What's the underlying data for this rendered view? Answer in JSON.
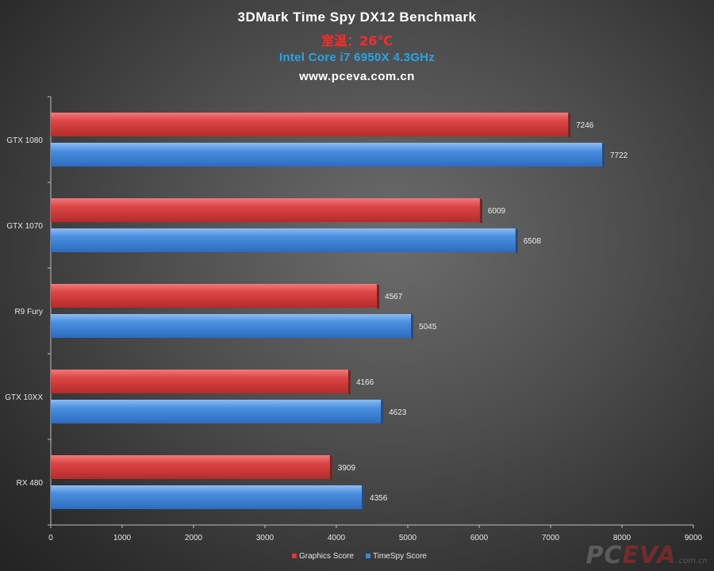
{
  "title": {
    "main": "3DMark Time Spy DX12 Benchmark",
    "temp": "室温：26℃",
    "cpu": "Intel Core i7 6950X 4.3GHz",
    "site": "www.pceva.com.cn"
  },
  "chart_data": {
    "type": "bar",
    "orientation": "horizontal",
    "categories": [
      "GTX 1080",
      "GTX 1070",
      "R9 Fury",
      "GTX 10XX",
      "RX 480"
    ],
    "series": [
      {
        "name": "Graphics Score",
        "color": "#d63c3c",
        "values": [
          7246,
          6009,
          4567,
          4166,
          3909
        ]
      },
      {
        "name": "TimeSpy Score",
        "color": "#3f86d8",
        "values": [
          7722,
          6508,
          5045,
          4623,
          4356
        ]
      }
    ],
    "xlim": [
      0,
      9000
    ],
    "xticks": [
      0,
      1000,
      2000,
      3000,
      4000,
      5000,
      6000,
      7000,
      8000,
      9000
    ],
    "legend_position": "bottom",
    "grid": false
  },
  "watermark": {
    "brand_a": "PC",
    "brand_b": "EVA",
    "domain": ".com.cn"
  }
}
